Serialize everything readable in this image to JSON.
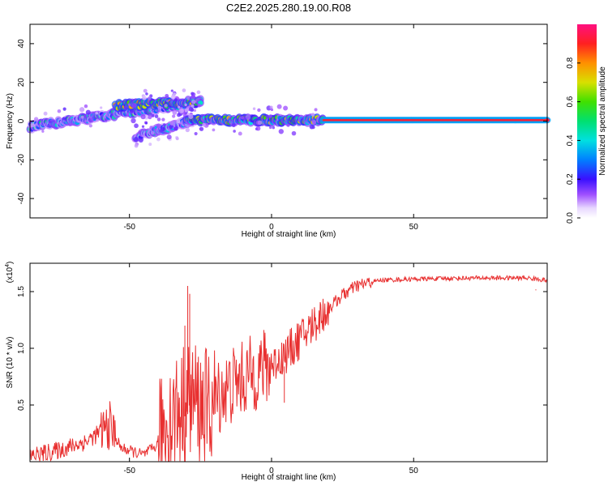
{
  "title": "C2E2.2025.280.19.00.R08",
  "colors": {
    "snr_line": "#e83030",
    "frame": "#000000"
  },
  "chart_data": [
    {
      "type": "heatmap",
      "name": "spectrogram",
      "xlabel": "Height of straight line (km)",
      "ylabel": "Frequency (Hz)",
      "xlim": [
        -85,
        97
      ],
      "ylim": [
        -50,
        50
      ],
      "xticks": [
        -50,
        0,
        50
      ],
      "xtick_labels": [
        "-50",
        "0",
        "50"
      ],
      "yticks": [
        -40,
        -20,
        0,
        20,
        40
      ],
      "ytick_labels": [
        "-40",
        "-20",
        "0",
        "20",
        "40"
      ],
      "colorbar": {
        "label": "Normalized spectral amplitude",
        "range": [
          0,
          1
        ],
        "ticks": [
          0.0,
          0.2,
          0.4,
          0.6,
          0.8
        ],
        "tick_labels": [
          "0.0",
          "0.2",
          "0.4",
          "0.6",
          "0.8"
        ]
      },
      "ridges": [
        {
          "x_start": -85,
          "x_end": -25,
          "f_start": -3,
          "f_end": 10,
          "amp": 0.35
        },
        {
          "x_start": -55,
          "x_end": -25,
          "f_start": 8,
          "f_end": 10,
          "amp": 0.55
        },
        {
          "x_start": -48,
          "x_end": -28,
          "f_start": -8,
          "f_end": 0,
          "amp": 0.3
        },
        {
          "x_start": -30,
          "x_end": 18,
          "f_start": 0.5,
          "f_end": 0.5,
          "amp": 0.5
        },
        {
          "x_start": 18,
          "x_end": 97,
          "f_start": 0.5,
          "f_end": 0.5,
          "amp": 0.95
        }
      ]
    },
    {
      "type": "line",
      "name": "snr",
      "xlabel": "Height of straight line (km)",
      "ylabel": "SNR (10 * v/v)",
      "y_scale_label": "(x10",
      "y_scale_exponent": "4",
      "y_scale_suffix": ")",
      "xlim": [
        -85,
        97
      ],
      "ylim": [
        0,
        1.75
      ],
      "xticks": [
        -50,
        0,
        50
      ],
      "xtick_labels": [
        "-50",
        "0",
        "50"
      ],
      "yticks": [
        0.5,
        1.0,
        1.5
      ],
      "ytick_labels": [
        "0.5",
        "1.0",
        "1.5"
      ],
      "profile": [
        {
          "x": -85,
          "y": 0.05
        },
        {
          "x": -75,
          "y": 0.1
        },
        {
          "x": -65,
          "y": 0.18
        },
        {
          "x": -57,
          "y": 0.32
        },
        {
          "x": -53,
          "y": 0.12
        },
        {
          "x": -45,
          "y": 0.06
        },
        {
          "x": -40,
          "y": 0.15
        },
        {
          "x": -38,
          "y": 0.3
        },
        {
          "x": -33,
          "y": 0.45
        },
        {
          "x": -28,
          "y": 0.55
        },
        {
          "x": -22,
          "y": 0.45
        },
        {
          "x": -18,
          "y": 0.6
        },
        {
          "x": -12,
          "y": 0.7
        },
        {
          "x": -5,
          "y": 0.8
        },
        {
          "x": 0,
          "y": 0.85
        },
        {
          "x": 5,
          "y": 0.95
        },
        {
          "x": 10,
          "y": 1.08
        },
        {
          "x": 15,
          "y": 1.22
        },
        {
          "x": 20,
          "y": 1.35
        },
        {
          "x": 25,
          "y": 1.47
        },
        {
          "x": 30,
          "y": 1.55
        },
        {
          "x": 38,
          "y": 1.6
        },
        {
          "x": 50,
          "y": 1.61
        },
        {
          "x": 70,
          "y": 1.62
        },
        {
          "x": 90,
          "y": 1.62
        },
        {
          "x": 97,
          "y": 1.6
        }
      ],
      "noise": [
        {
          "x_start": -85,
          "x_end": -60,
          "amp": 0.08
        },
        {
          "x_start": -60,
          "x_end": -55,
          "amp": 0.22
        },
        {
          "x_start": -55,
          "x_end": -40,
          "amp": 0.05
        },
        {
          "x_start": -40,
          "x_end": -20,
          "amp": 0.55
        },
        {
          "x_start": -20,
          "x_end": 0,
          "amp": 0.35
        },
        {
          "x_start": 0,
          "x_end": 20,
          "amp": 0.18
        },
        {
          "x_start": 20,
          "x_end": 35,
          "amp": 0.06
        },
        {
          "x_start": 35,
          "x_end": 97,
          "amp": 0.02
        }
      ],
      "spikes": [
        {
          "x": -29.5,
          "y": 1.55
        },
        {
          "x": -28.8,
          "y": 1.48
        },
        {
          "x": -30.5,
          "y": 1.2
        },
        {
          "x": 4.5,
          "y": 0.52
        },
        {
          "x": 93,
          "y": 1.52
        }
      ]
    }
  ]
}
